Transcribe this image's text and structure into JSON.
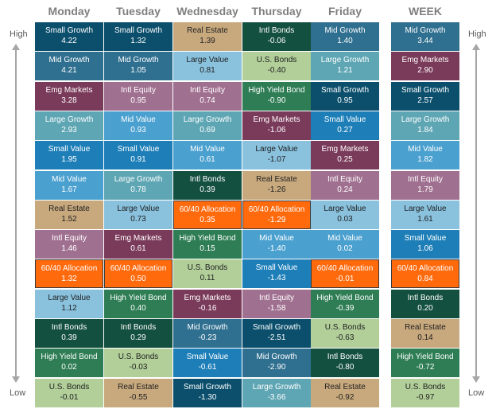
{
  "chart_data": {
    "type": "table",
    "side_labels": {
      "high": "High",
      "low": "Low"
    },
    "colors": {
      "Small Growth": "#0b4f6c",
      "Mid Growth": "#2f6f8f",
      "Large Growth": "#5fa6b4",
      "Small Value": "#1e7fb8",
      "Mid Value": "#4aa0cf",
      "Large Value": "#8ac2de",
      "Emg Markets": "#7a3a5a",
      "Intl Equity": "#a07090",
      "Real Estate": "#c8a97e",
      "Intl Bonds": "#14503f",
      "U.S. Bonds": "#b2cf9a",
      "High Yield Bond": "#2e7d55",
      "60/40 Allocation": "#ff6a0d"
    },
    "dark_text": [
      "Large Value",
      "Real Estate",
      "U.S. Bonds"
    ],
    "columns": [
      {
        "header": "Monday",
        "cells": [
          {
            "name": "Small Growth",
            "value": "4.22"
          },
          {
            "name": "Mid Growth",
            "value": "4.21"
          },
          {
            "name": "Emg Markets",
            "value": "3.28"
          },
          {
            "name": "Large Growth",
            "value": "2.93"
          },
          {
            "name": "Small Value",
            "value": "1.95"
          },
          {
            "name": "Mid Value",
            "value": "1.67"
          },
          {
            "name": "Real Estate",
            "value": "1.52"
          },
          {
            "name": "Intl Equity",
            "value": "1.46"
          },
          {
            "name": "60/40 Allocation",
            "value": "1.32"
          },
          {
            "name": "Large Value",
            "value": "1.12"
          },
          {
            "name": "Intl Bonds",
            "value": "0.39"
          },
          {
            "name": "High Yield Bond",
            "value": "0.02"
          },
          {
            "name": "U.S. Bonds",
            "value": "-0.01"
          }
        ]
      },
      {
        "header": "Tuesday",
        "cells": [
          {
            "name": "Small Growth",
            "value": "1.32"
          },
          {
            "name": "Mid Growth",
            "value": "1.05"
          },
          {
            "name": "Intl Equity",
            "value": "0.95"
          },
          {
            "name": "Mid Value",
            "value": "0.93"
          },
          {
            "name": "Small Value",
            "value": "0.91"
          },
          {
            "name": "Large Growth",
            "value": "0.78"
          },
          {
            "name": "Large Value",
            "value": "0.73"
          },
          {
            "name": "Emg Markets",
            "value": "0.61"
          },
          {
            "name": "60/40 Allocation",
            "value": "0.50"
          },
          {
            "name": "High Yield Bond",
            "value": "0.40"
          },
          {
            "name": "Intl Bonds",
            "value": "0.29"
          },
          {
            "name": "U.S. Bonds",
            "value": "-0.03"
          },
          {
            "name": "Real Estate",
            "value": "-0.55"
          }
        ]
      },
      {
        "header": "Wednesday",
        "cells": [
          {
            "name": "Real Estate",
            "value": "1.39"
          },
          {
            "name": "Large Value",
            "value": "0.81"
          },
          {
            "name": "Intl Equity",
            "value": "0.74"
          },
          {
            "name": "Large Growth",
            "value": "0.69"
          },
          {
            "name": "Mid Value",
            "value": "0.61"
          },
          {
            "name": "Intl Bonds",
            "value": "0.39"
          },
          {
            "name": "60/40 Allocation",
            "value": "0.35"
          },
          {
            "name": "High Yield Bond",
            "value": "0.15"
          },
          {
            "name": "U.S. Bonds",
            "value": "0.11"
          },
          {
            "name": "Emg Markets",
            "value": "-0.16"
          },
          {
            "name": "Mid Growth",
            "value": "-0.23"
          },
          {
            "name": "Small Value",
            "value": "-0.61"
          },
          {
            "name": "Small Growth",
            "value": "-1.30"
          }
        ]
      },
      {
        "header": "Thursday",
        "cells": [
          {
            "name": "Intl Bonds",
            "value": "-0.06"
          },
          {
            "name": "U.S. Bonds",
            "value": "-0.40"
          },
          {
            "name": "High Yield Bond",
            "value": "-0.90"
          },
          {
            "name": "Emg Markets",
            "value": "-1.06"
          },
          {
            "name": "Large Value",
            "value": "-1.07"
          },
          {
            "name": "Real Estate",
            "value": "-1.26"
          },
          {
            "name": "60/40 Allocation",
            "value": "-1.29"
          },
          {
            "name": "Mid Value",
            "value": "-1.40"
          },
          {
            "name": "Small Value",
            "value": "-1.43"
          },
          {
            "name": "Intl Equity",
            "value": "-1.58"
          },
          {
            "name": "Small Growth",
            "value": "-2.51"
          },
          {
            "name": "Mid Growth",
            "value": "-2.90"
          },
          {
            "name": "Large Growth",
            "value": "-3.66"
          }
        ]
      },
      {
        "header": "Friday",
        "cells": [
          {
            "name": "Mid Growth",
            "value": "1.40"
          },
          {
            "name": "Large Growth",
            "value": "1.21"
          },
          {
            "name": "Small Growth",
            "value": "0.95"
          },
          {
            "name": "Small Value",
            "value": "0.27"
          },
          {
            "name": "Emg Markets",
            "value": "0.25"
          },
          {
            "name": "Intl Equity",
            "value": "0.24"
          },
          {
            "name": "Large Value",
            "value": "0.03"
          },
          {
            "name": "Mid Value",
            "value": "0.02"
          },
          {
            "name": "60/40 Allocation",
            "value": "-0.01"
          },
          {
            "name": "High Yield Bond",
            "value": "-0.39"
          },
          {
            "name": "U.S. Bonds",
            "value": "-0.63"
          },
          {
            "name": "Intl Bonds",
            "value": "-0.80"
          },
          {
            "name": "Real Estate",
            "value": "-0.92"
          }
        ]
      },
      {
        "header": "WEEK",
        "cells": [
          {
            "name": "Mid Growth",
            "value": "3.44"
          },
          {
            "name": "Emg Markets",
            "value": "2.90"
          },
          {
            "name": "Small Growth",
            "value": "2.57"
          },
          {
            "name": "Large Growth",
            "value": "1.84"
          },
          {
            "name": "Mid Value",
            "value": "1.82"
          },
          {
            "name": "Intl Equity",
            "value": "1.79"
          },
          {
            "name": "Large Value",
            "value": "1.61"
          },
          {
            "name": "Small Value",
            "value": "1.06"
          },
          {
            "name": "60/40 Allocation",
            "value": "0.84"
          },
          {
            "name": "Intl Bonds",
            "value": "0.20"
          },
          {
            "name": "Real Estate",
            "value": "0.14"
          },
          {
            "name": "High Yield Bond",
            "value": "-0.72"
          },
          {
            "name": "U.S. Bonds",
            "value": "-0.97"
          }
        ]
      }
    ]
  }
}
